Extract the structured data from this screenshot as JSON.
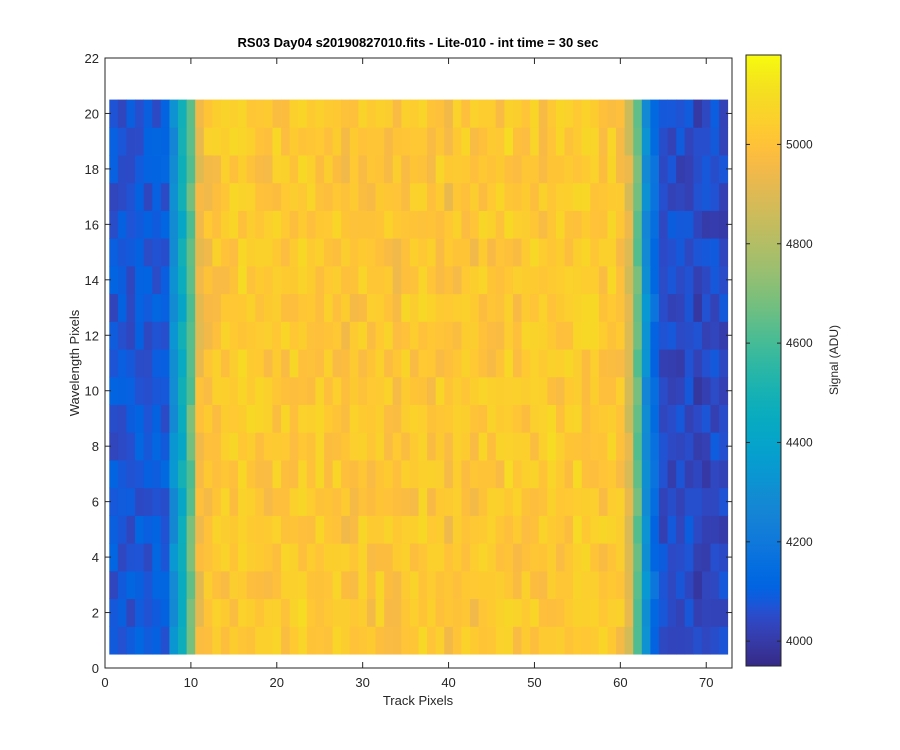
{
  "chart_data": {
    "type": "heatmap",
    "title": "RS03 Day04  s20190827010.fits - Lite-010 - int time = 30 sec",
    "xlabel": "Track Pixels",
    "ylabel": "Wavelength Pixels",
    "colorbar_label": "Signal (ADU)",
    "colormap": "parula",
    "xlim": [
      0,
      73
    ],
    "ylim": [
      0,
      22
    ],
    "clim": [
      3950,
      5180
    ],
    "x_ticks": [
      0,
      10,
      20,
      30,
      40,
      50,
      60,
      70
    ],
    "y_ticks": [
      0,
      2,
      4,
      6,
      8,
      10,
      12,
      14,
      16,
      18,
      20,
      22
    ],
    "colorbar_ticks": [
      4000,
      4200,
      4400,
      4600,
      4800,
      5000
    ],
    "grid": false,
    "n_track_pixels": 72,
    "n_wavelength_pixels": 20,
    "track_profile_adu": [
      4070,
      4080,
      4075,
      4080,
      4070,
      4085,
      4090,
      4300,
      4450,
      4650,
      4950,
      5000,
      5010,
      5020,
      5030,
      5040,
      5030,
      5020,
      5010,
      5030,
      5020,
      5030,
      5040,
      5020,
      5030,
      5010,
      5020,
      5000,
      5010,
      5020,
      5000,
      5020,
      5010,
      4990,
      5020,
      5010,
      5030,
      5010,
      5020,
      4980,
      5010,
      5020,
      5000,
      5030,
      5010,
      5020,
      5040,
      5010,
      5020,
      5030,
      5010,
      5040,
      5020,
      5030,
      5040,
      5030,
      5040,
      5020,
      5030,
      5010,
      4900,
      4650,
      4300,
      4150,
      4060,
      4050,
      4040,
      4060,
      4030,
      4040,
      4050,
      4040
    ]
  }
}
